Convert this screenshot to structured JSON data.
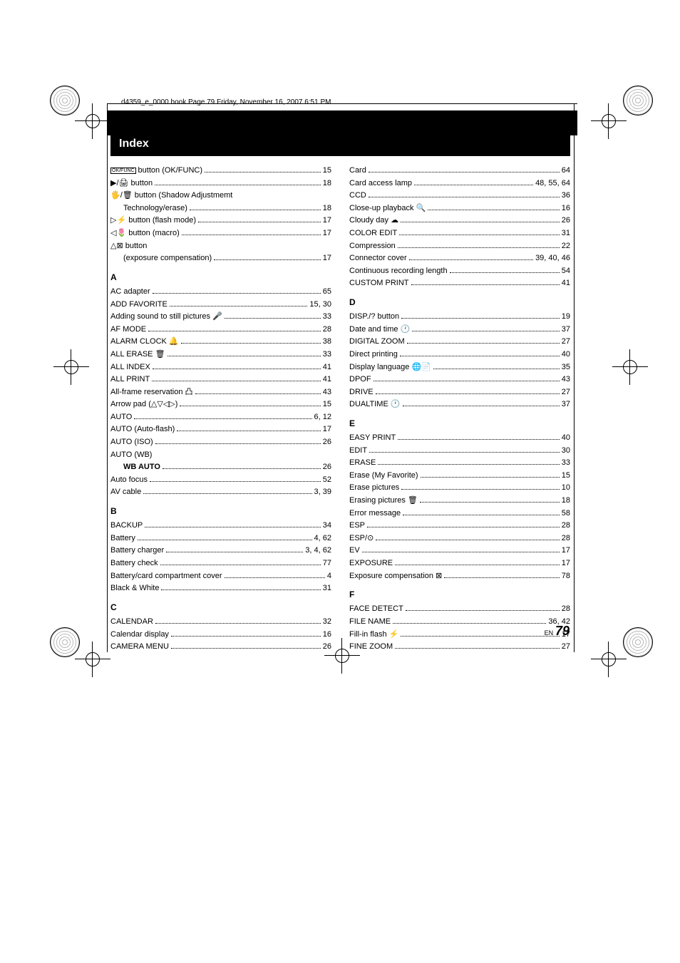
{
  "cropmark_text": "d4359_e_0000.book  Page 79  Friday, November 16, 2007  6:51 PM",
  "title": "Index",
  "footer": {
    "en": "EN",
    "num": "79"
  },
  "col1": {
    "top": [
      {
        "label": "[OK/FUNC] button (OK/FUNC)",
        "page": "15",
        "icon": "okfunc"
      },
      {
        "label": "▶/🖨 button",
        "page": "18"
      },
      {
        "label": "🖐/🗑 button (Shadow Adjustmemt",
        "page": "",
        "nodots": true
      },
      {
        "label": "Technology/erase)",
        "page": "18",
        "indent": true
      },
      {
        "label": "▷⚡ button (flash mode)",
        "page": "17"
      },
      {
        "label": "◁🌷 button (macro)",
        "page": "17"
      },
      {
        "label": "△⊠ button",
        "page": "",
        "nodots": true
      },
      {
        "label": "(exposure compensation)",
        "page": "17",
        "indent": true
      }
    ],
    "sections": [
      {
        "letter": "A",
        "entries": [
          {
            "label": "AC adapter",
            "page": "65"
          },
          {
            "label": "ADD FAVORITE",
            "page": "15, 30"
          },
          {
            "label": "Adding sound to still pictures 🎤",
            "page": "33"
          },
          {
            "label": "AF MODE",
            "page": "28"
          },
          {
            "label": "ALARM CLOCK 🔔",
            "page": "38"
          },
          {
            "label": "ALL ERASE 🗑",
            "page": "33"
          },
          {
            "label": "ALL INDEX",
            "page": "41"
          },
          {
            "label": "ALL PRINT",
            "page": "41"
          },
          {
            "label": "All-frame reservation 凸",
            "page": "43"
          },
          {
            "label": "Arrow pad (△▽◁▷)",
            "page": "15"
          },
          {
            "label": "AUTO",
            "page": "6, 12"
          },
          {
            "label": "AUTO (Auto-flash)",
            "page": "17"
          },
          {
            "label": "AUTO (ISO)",
            "page": "26"
          },
          {
            "label": "AUTO (WB)",
            "page": "",
            "nodots": true
          },
          {
            "label": "WB AUTO",
            "page": "26",
            "indent": true,
            "bold": true
          },
          {
            "label": "Auto focus",
            "page": "52"
          },
          {
            "label": "AV cable",
            "page": "3, 39"
          }
        ]
      },
      {
        "letter": "B",
        "entries": [
          {
            "label": "BACKUP",
            "page": "34"
          },
          {
            "label": "Battery",
            "page": "4, 62"
          },
          {
            "label": "Battery charger",
            "page": "3, 4, 62"
          },
          {
            "label": "Battery check",
            "page": "77"
          },
          {
            "label": "Battery/card compartment cover",
            "page": "4"
          },
          {
            "label": "Black & White",
            "page": "31"
          }
        ]
      },
      {
        "letter": "C",
        "entries": [
          {
            "label": "CALENDAR",
            "page": "32"
          },
          {
            "label": "Calendar display",
            "page": "16"
          },
          {
            "label": "CAMERA MENU",
            "page": "26"
          }
        ]
      }
    ]
  },
  "col2": {
    "top": [
      {
        "label": "Card",
        "page": "64"
      },
      {
        "label": "Card access lamp",
        "page": "48, 55, 64"
      },
      {
        "label": "CCD",
        "page": "36"
      },
      {
        "label": "Close-up playback 🔍",
        "page": "16"
      },
      {
        "label": "Cloudy day ☁",
        "page": "26"
      },
      {
        "label": "COLOR EDIT",
        "page": "31"
      },
      {
        "label": "Compression",
        "page": "22"
      },
      {
        "label": "Connector cover",
        "page": "39, 40, 46"
      },
      {
        "label": "Continuous recording length",
        "page": "54"
      },
      {
        "label": "CUSTOM PRINT",
        "page": "41"
      }
    ],
    "sections": [
      {
        "letter": "D",
        "entries": [
          {
            "label": "DISP./? button",
            "page": "19"
          },
          {
            "label": "Date and time 🕐",
            "page": "37"
          },
          {
            "label": "DIGITAL ZOOM",
            "page": "27"
          },
          {
            "label": "Direct printing",
            "page": "40"
          },
          {
            "label": "Display language 🌐📄",
            "page": "35"
          },
          {
            "label": "DPOF",
            "page": "43"
          },
          {
            "label": "DRIVE",
            "page": "27"
          },
          {
            "label": "DUALTIME 🕐",
            "page": "37"
          }
        ]
      },
      {
        "letter": "E",
        "entries": [
          {
            "label": "EASY PRINT",
            "page": "40"
          },
          {
            "label": "EDIT",
            "page": "30"
          },
          {
            "label": "ERASE",
            "page": "33"
          },
          {
            "label": "Erase (My Favorite)",
            "page": "15"
          },
          {
            "label": "Erase pictures",
            "page": "10"
          },
          {
            "label": "Erasing pictures 🗑",
            "page": "18"
          },
          {
            "label": "Error message",
            "page": "58"
          },
          {
            "label": "ESP",
            "page": "28"
          },
          {
            "label": "ESP/⊙",
            "page": "28"
          },
          {
            "label": "EV",
            "page": "17"
          },
          {
            "label": "EXPOSURE",
            "page": "17"
          },
          {
            "label": "Exposure compensation ⊠",
            "page": "78"
          }
        ]
      },
      {
        "letter": "F",
        "entries": [
          {
            "label": "FACE DETECT",
            "page": "28"
          },
          {
            "label": "FILE NAME",
            "page": "36, 42"
          },
          {
            "label": "Fill-in flash ⚡",
            "page": "17"
          },
          {
            "label": "FINE ZOOM",
            "page": "27"
          }
        ]
      }
    ]
  }
}
